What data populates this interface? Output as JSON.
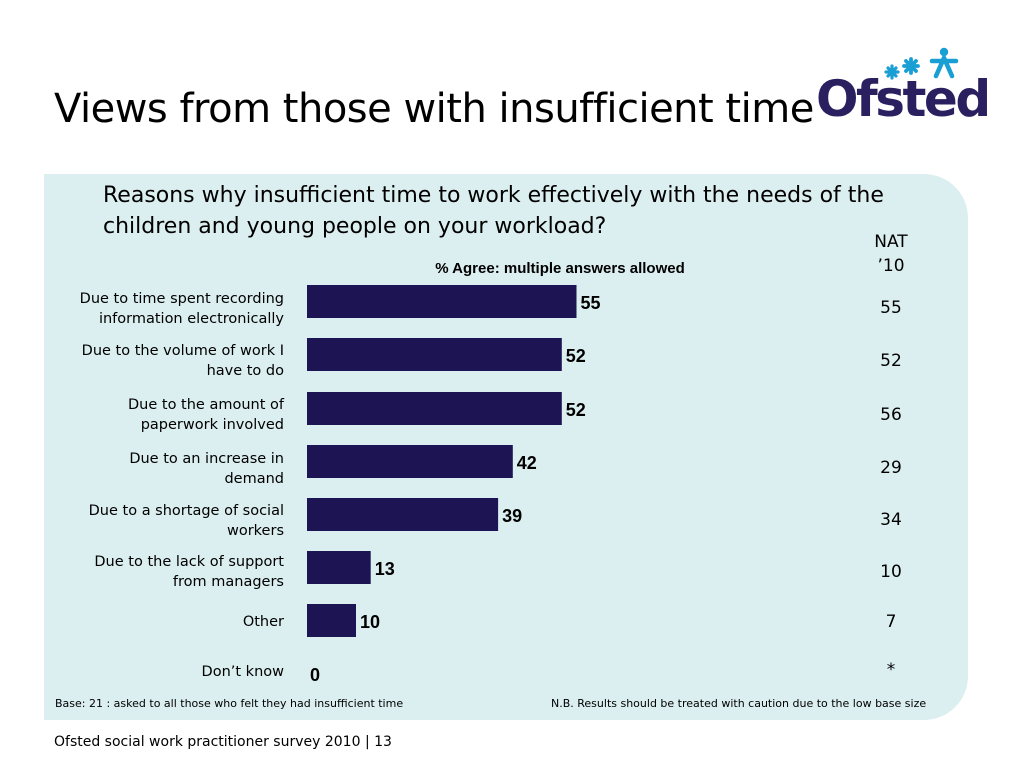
{
  "slide": {
    "title": "Views from those with insufficient time",
    "logo_text": "Ofsted",
    "footer": "Ofsted social work practitioner survey 2010  |  13"
  },
  "colors": {
    "bar": "#1d1553",
    "panel": "#dbeef0",
    "logo": "#2a2060",
    "logo_stars": "#1a9fd4"
  },
  "chart_data": {
    "type": "bar",
    "orientation": "horizontal",
    "title": "Reasons why insufficient time to work effectively with the needs of the children and young people on your workload?",
    "subtitle": "% Agree: multiple answers allowed",
    "categories": [
      [
        "Due to time spent recording",
        "information electronically"
      ],
      [
        "Due to the volume of work I",
        "have to do"
      ],
      [
        "Due to the amount of",
        "paperwork involved"
      ],
      [
        "Due to an increase in",
        "demand"
      ],
      [
        "Due to a shortage of social",
        "workers"
      ],
      [
        "Due to the lack of support",
        "from managers"
      ],
      [
        "Other"
      ],
      [
        "Don’t know"
      ]
    ],
    "series": [
      {
        "values": [
          55,
          52,
          52,
          42,
          39,
          13,
          10,
          0
        ]
      }
    ],
    "value_labels": [
      "55",
      "52",
      "52",
      "42",
      "39",
      "13",
      "10",
      "0"
    ],
    "comparison": {
      "header": [
        "NAT",
        "’10"
      ],
      "values": [
        "55",
        "52",
        "56",
        "29",
        "34",
        "10",
        "7",
        "*"
      ]
    },
    "xlim": [
      0,
      100
    ],
    "grid": false,
    "legend": "none",
    "notes": {
      "base": "Base: 21 : asked to all those who felt they had insufficient time",
      "caution": "N.B. Results should be treated with caution due to the low base size"
    }
  }
}
